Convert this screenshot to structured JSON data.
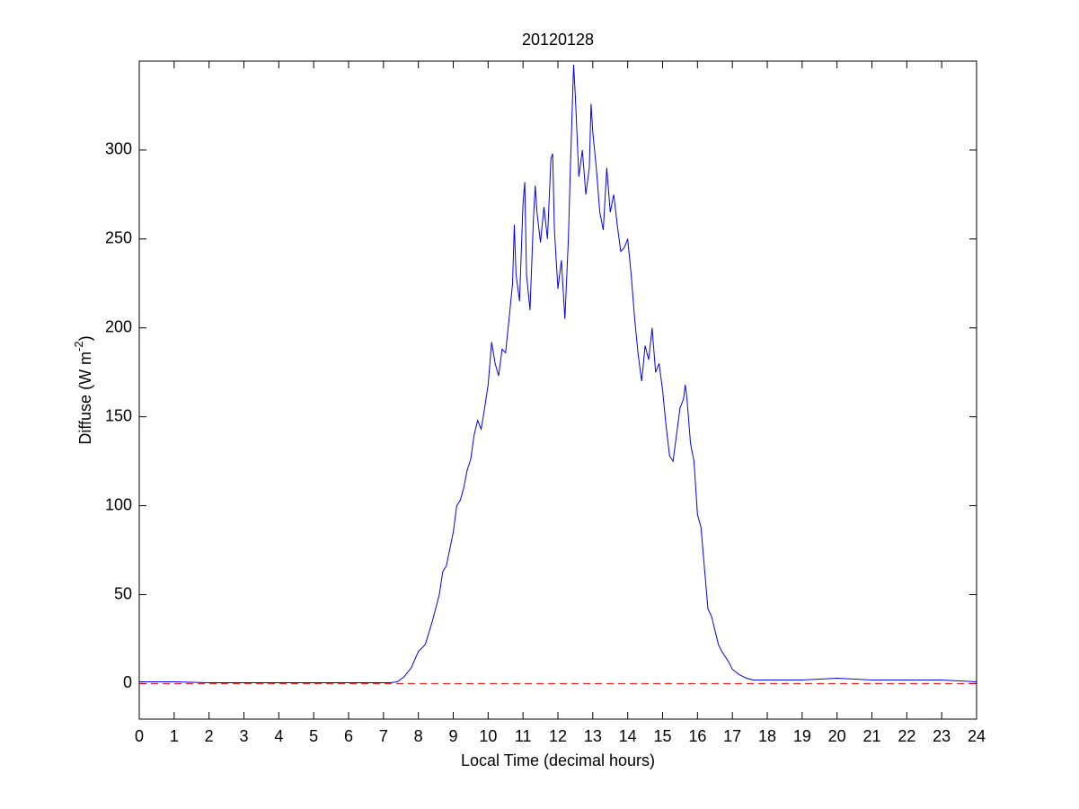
{
  "chart_data": {
    "type": "line",
    "title": "20120128",
    "x_label": "Local Time (decimal hours)",
    "y_label": {
      "text": "Diffuse (W m",
      "superscript": "-2",
      "suffix": ")"
    },
    "xlim": [
      0,
      24
    ],
    "ylim": [
      -20,
      350
    ],
    "xticks": [
      0,
      1,
      2,
      3,
      4,
      5,
      6,
      7,
      8,
      9,
      10,
      11,
      12,
      13,
      14,
      15,
      16,
      17,
      18,
      19,
      20,
      21,
      22,
      23,
      24
    ],
    "yticks": [
      0,
      50,
      100,
      150,
      200,
      250,
      300
    ],
    "reference_line": {
      "value": 0,
      "color": "#ff0000",
      "style": "dashed"
    },
    "x": [
      0,
      1,
      2,
      3,
      4,
      5,
      6,
      7,
      7.2,
      7.4,
      7.6,
      7.8,
      8.0,
      8.2,
      8.4,
      8.6,
      8.7,
      8.8,
      9.0,
      9.1,
      9.2,
      9.3,
      9.4,
      9.5,
      9.6,
      9.7,
      9.8,
      9.9,
      10.0,
      10.1,
      10.2,
      10.3,
      10.4,
      10.5,
      10.6,
      10.7,
      10.75,
      10.8,
      10.9,
      11.0,
      11.05,
      11.1,
      11.2,
      11.3,
      11.35,
      11.4,
      11.5,
      11.6,
      11.7,
      11.8,
      11.85,
      11.9,
      12.0,
      12.1,
      12.2,
      12.3,
      12.35,
      12.45,
      12.5,
      12.6,
      12.7,
      12.8,
      12.9,
      12.95,
      13.0,
      13.1,
      13.2,
      13.3,
      13.4,
      13.5,
      13.6,
      13.7,
      13.8,
      13.9,
      14.0,
      14.1,
      14.2,
      14.3,
      14.4,
      14.5,
      14.6,
      14.7,
      14.8,
      14.9,
      15.0,
      15.1,
      15.2,
      15.3,
      15.4,
      15.5,
      15.6,
      15.65,
      15.7,
      15.8,
      15.9,
      16.0,
      16.1,
      16.2,
      16.3,
      16.4,
      16.5,
      16.6,
      16.7,
      16.8,
      16.9,
      17.0,
      17.2,
      17.4,
      17.6,
      18,
      19,
      20,
      21,
      22,
      23,
      24
    ],
    "series": [
      {
        "color": "#0000ff",
        "values": [
          1,
          1,
          0.5,
          0.5,
          0.5,
          0.5,
          0.5,
          0.5,
          0.5,
          1,
          4,
          9,
          18,
          22,
          35,
          50,
          63,
          66,
          85,
          100,
          103,
          110,
          120,
          126,
          140,
          148,
          143,
          155,
          168,
          192,
          180,
          173,
          188,
          186,
          205,
          225,
          258,
          230,
          215,
          270,
          282,
          230,
          210,
          262,
          280,
          265,
          248,
          268,
          250,
          295,
          298,
          255,
          222,
          238,
          205,
          250,
          285,
          348,
          330,
          285,
          300,
          275,
          290,
          326,
          310,
          290,
          265,
          255,
          290,
          265,
          275,
          258,
          243,
          245,
          250,
          230,
          205,
          185,
          170,
          190,
          182,
          200,
          175,
          180,
          165,
          145,
          128,
          125,
          140,
          155,
          160,
          168,
          160,
          135,
          125,
          95,
          88,
          65,
          42,
          38,
          30,
          22,
          18,
          15,
          12,
          8,
          5,
          3,
          2,
          2,
          2,
          3,
          2,
          2,
          2,
          1
        ]
      }
    ]
  }
}
